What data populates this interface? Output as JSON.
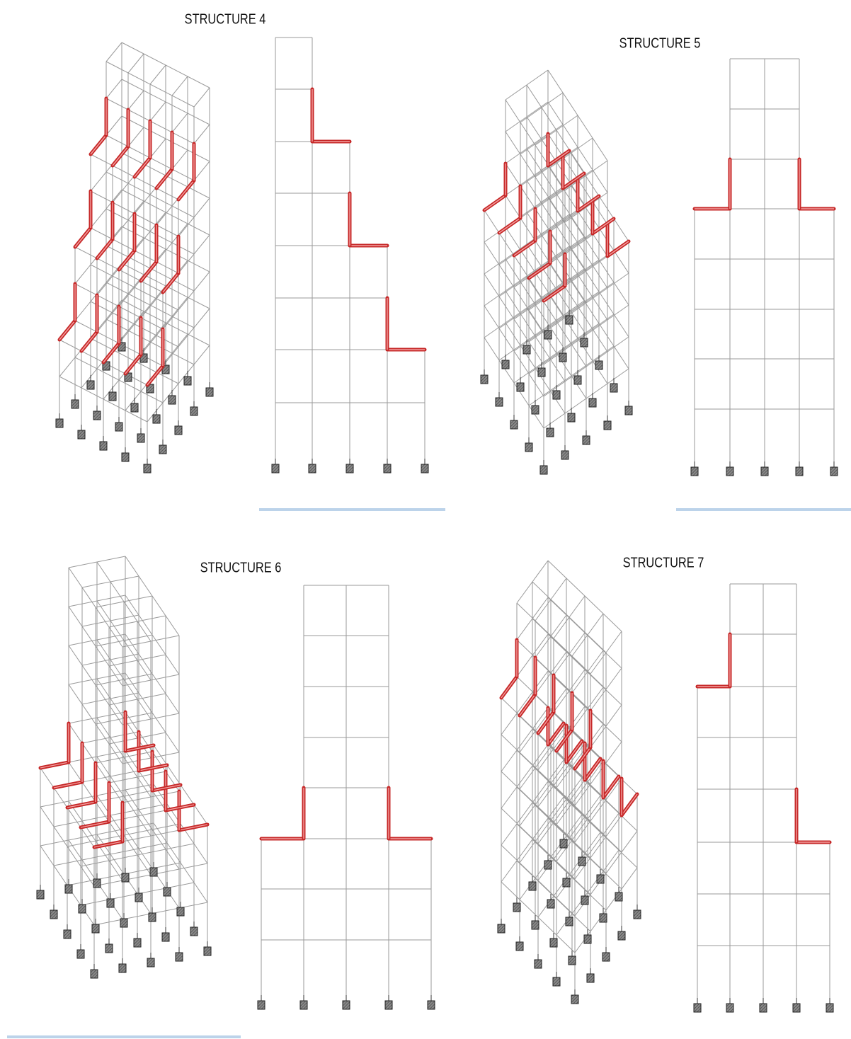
{
  "panels": [
    {
      "title": "STRUCTURE 4"
    },
    {
      "title": "STRUCTURE 5"
    },
    {
      "title": "STRUCTURE 6"
    },
    {
      "title": "STRUCTURE 7"
    }
  ]
}
